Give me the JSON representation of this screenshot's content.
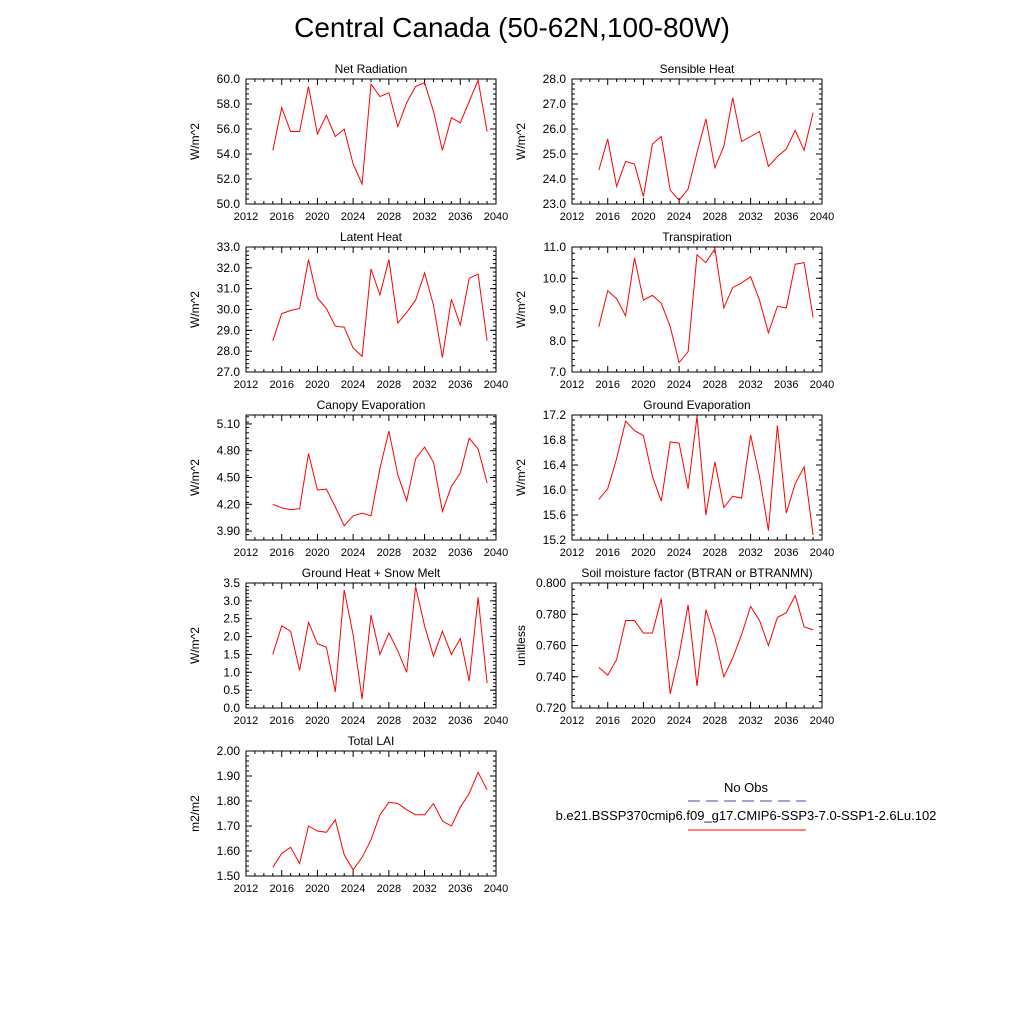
{
  "page": {
    "title": "Central Canada (50-62N,100-80W)"
  },
  "legend": {
    "obs_label": "No Obs",
    "obs_color": "#4444aa",
    "model_label": "b.e21.BSSP370cmip6.f09_g17.CMIP6-SSP3-7.0-SSP1-2.6Lu.102",
    "model_color": "#ff0000"
  },
  "chart_data": [
    {
      "type": "line",
      "title": "Net Radiation",
      "ylabel": "W/m^2",
      "xlabel": "",
      "xlim": [
        2012,
        2040
      ],
      "ylim": [
        50,
        60
      ],
      "xticks": [
        "2012",
        "2016",
        "2020",
        "2024",
        "2028",
        "2032",
        "2036",
        "2040"
      ],
      "yticks": [
        "50.0",
        "52.0",
        "54.0",
        "56.0",
        "58.0",
        "60.0"
      ],
      "series": [
        {
          "color": "#ff0000",
          "x": [
            2015,
            2016,
            2017,
            2018,
            2019,
            2020,
            2021,
            2022,
            2023,
            2024,
            2025,
            2026,
            2027,
            2028,
            2029,
            2030,
            2031,
            2032,
            2033,
            2034,
            2035,
            2036,
            2037,
            2038,
            2039
          ],
          "y": [
            54.3,
            57.7,
            55.8,
            55.8,
            59.4,
            55.6,
            57.1,
            55.4,
            56.0,
            53.2,
            51.6,
            59.6,
            58.6,
            58.9,
            56.2,
            58.1,
            59.4,
            59.7,
            57.4,
            54.3,
            56.9,
            56.5,
            58.2,
            59.9,
            55.8
          ]
        }
      ]
    },
    {
      "type": "line",
      "title": "Sensible Heat",
      "ylabel": "W/m^2",
      "xlabel": "",
      "xlim": [
        2012,
        2040
      ],
      "ylim": [
        23,
        28
      ],
      "xticks": [
        "2012",
        "2016",
        "2020",
        "2024",
        "2028",
        "2032",
        "2036",
        "2040"
      ],
      "yticks": [
        "23.0",
        "24.0",
        "25.0",
        "26.0",
        "27.0",
        "28.0"
      ],
      "series": [
        {
          "color": "#ff0000",
          "x": [
            2015,
            2016,
            2017,
            2018,
            2019,
            2020,
            2021,
            2022,
            2023,
            2024,
            2025,
            2026,
            2027,
            2028,
            2029,
            2030,
            2031,
            2032,
            2033,
            2034,
            2035,
            2036,
            2037,
            2038,
            2039
          ],
          "y": [
            24.35,
            25.6,
            23.7,
            24.7,
            24.6,
            23.3,
            25.4,
            25.7,
            23.55,
            23.15,
            23.6,
            25.05,
            26.4,
            24.45,
            25.3,
            27.25,
            25.5,
            25.7,
            25.9,
            24.5,
            24.9,
            25.2,
            25.95,
            25.15,
            26.65
          ]
        }
      ]
    },
    {
      "type": "line",
      "title": "Latent Heat",
      "ylabel": "W/m^2",
      "xlabel": "",
      "xlim": [
        2012,
        2040
      ],
      "ylim": [
        27,
        33
      ],
      "xticks": [
        "2012",
        "2016",
        "2020",
        "2024",
        "2028",
        "2032",
        "2036",
        "2040"
      ],
      "yticks": [
        "27.0",
        "28.0",
        "29.0",
        "30.0",
        "31.0",
        "32.0",
        "33.0"
      ],
      "series": [
        {
          "color": "#ff0000",
          "x": [
            2015,
            2016,
            2017,
            2018,
            2019,
            2020,
            2021,
            2022,
            2023,
            2024,
            2025,
            2026,
            2027,
            2028,
            2029,
            2030,
            2031,
            2032,
            2033,
            2034,
            2035,
            2036,
            2037,
            2038,
            2039
          ],
          "y": [
            28.5,
            29.8,
            29.95,
            30.05,
            32.4,
            30.55,
            30.05,
            29.2,
            29.15,
            28.15,
            27.75,
            31.95,
            30.7,
            32.4,
            29.35,
            29.85,
            30.45,
            31.75,
            30.2,
            27.7,
            30.5,
            29.25,
            31.5,
            31.7,
            28.5
          ]
        }
      ]
    },
    {
      "type": "line",
      "title": "Transpiration",
      "ylabel": "W/m^2",
      "xlabel": "",
      "xlim": [
        2012,
        2040
      ],
      "ylim": [
        7,
        11
      ],
      "xticks": [
        "2012",
        "2016",
        "2020",
        "2024",
        "2028",
        "2032",
        "2036",
        "2040"
      ],
      "yticks": [
        "7.0",
        "8.0",
        "9.0",
        "10.0",
        "11.0"
      ],
      "series": [
        {
          "color": "#ff0000",
          "x": [
            2015,
            2016,
            2017,
            2018,
            2019,
            2020,
            2021,
            2022,
            2023,
            2024,
            2025,
            2026,
            2027,
            2028,
            2029,
            2030,
            2031,
            2032,
            2033,
            2034,
            2035,
            2036,
            2037,
            2038,
            2039
          ],
          "y": [
            8.45,
            9.6,
            9.35,
            8.8,
            10.65,
            9.3,
            9.45,
            9.2,
            8.45,
            7.3,
            7.65,
            10.75,
            10.5,
            10.95,
            9.05,
            9.7,
            9.85,
            10.05,
            9.3,
            8.25,
            9.1,
            9.05,
            10.45,
            10.5,
            8.75
          ]
        }
      ]
    },
    {
      "type": "line",
      "title": "Canopy Evaporation",
      "ylabel": "W/m^2",
      "xlabel": "",
      "xlim": [
        2012,
        2040
      ],
      "ylim": [
        3.8,
        5.2
      ],
      "xticks": [
        "2012",
        "2016",
        "2020",
        "2024",
        "2028",
        "2032",
        "2036",
        "2040"
      ],
      "yticks": [
        "3.90",
        "4.20",
        "4.50",
        "4.80",
        "5.10"
      ],
      "series": [
        {
          "color": "#ff0000",
          "x": [
            2015,
            2016,
            2017,
            2018,
            2019,
            2020,
            2021,
            2022,
            2023,
            2024,
            2025,
            2026,
            2027,
            2028,
            2029,
            2030,
            2031,
            2032,
            2033,
            2034,
            2035,
            2036,
            2037,
            2038,
            2039
          ],
          "y": [
            4.2,
            4.16,
            4.14,
            4.15,
            4.77,
            4.36,
            4.37,
            4.17,
            3.96,
            4.07,
            4.1,
            4.07,
            4.6,
            5.02,
            4.53,
            4.24,
            4.71,
            4.84,
            4.67,
            4.12,
            4.4,
            4.55,
            4.94,
            4.82,
            4.44
          ]
        }
      ]
    },
    {
      "type": "line",
      "title": "Ground Evaporation",
      "ylabel": "W/m^2",
      "xlabel": "",
      "xlim": [
        2012,
        2040
      ],
      "ylim": [
        15.2,
        17.2
      ],
      "xticks": [
        "2012",
        "2016",
        "2020",
        "2024",
        "2028",
        "2032",
        "2036",
        "2040"
      ],
      "yticks": [
        "15.2",
        "15.6",
        "16.0",
        "16.4",
        "16.8",
        "17.2"
      ],
      "series": [
        {
          "color": "#ff0000",
          "x": [
            2015,
            2016,
            2017,
            2018,
            2019,
            2020,
            2021,
            2022,
            2023,
            2024,
            2025,
            2026,
            2027,
            2028,
            2029,
            2030,
            2031,
            2032,
            2033,
            2034,
            2035,
            2036,
            2037,
            2038,
            2039
          ],
          "y": [
            15.85,
            16.02,
            16.5,
            17.1,
            16.95,
            16.87,
            16.22,
            15.82,
            16.77,
            16.75,
            16.02,
            17.18,
            15.6,
            16.45,
            15.72,
            15.9,
            15.87,
            16.88,
            16.22,
            15.35,
            17.03,
            15.63,
            16.1,
            16.37,
            15.28
          ]
        }
      ]
    },
    {
      "type": "line",
      "title": "Ground Heat + Snow Melt",
      "ylabel": "W/m^2",
      "xlabel": "",
      "xlim": [
        2012,
        2040
      ],
      "ylim": [
        0,
        3.5
      ],
      "xticks": [
        "2012",
        "2016",
        "2020",
        "2024",
        "2028",
        "2032",
        "2036",
        "2040"
      ],
      "yticks": [
        "0.0",
        "0.5",
        "1.0",
        "1.5",
        "2.0",
        "2.5",
        "3.0",
        "3.5"
      ],
      "series": [
        {
          "color": "#ff0000",
          "x": [
            2015,
            2016,
            2017,
            2018,
            2019,
            2020,
            2021,
            2022,
            2023,
            2024,
            2025,
            2026,
            2027,
            2028,
            2029,
            2030,
            2031,
            2032,
            2033,
            2034,
            2035,
            2036,
            2037,
            2038,
            2039
          ],
          "y": [
            1.5,
            2.3,
            2.15,
            1.05,
            2.4,
            1.8,
            1.7,
            0.45,
            3.3,
            2.05,
            0.25,
            2.6,
            1.5,
            2.1,
            1.6,
            1.0,
            3.4,
            2.3,
            1.45,
            2.15,
            1.5,
            1.95,
            0.75,
            3.1,
            0.7
          ]
        }
      ]
    },
    {
      "type": "line",
      "title": "Soil moisture factor (BTRAN or BTRANMN)",
      "ylabel": "unitless",
      "xlabel": "",
      "xlim": [
        2012,
        2040
      ],
      "ylim": [
        0.72,
        0.8
      ],
      "xticks": [
        "2012",
        "2016",
        "2020",
        "2024",
        "2028",
        "2032",
        "2036",
        "2040"
      ],
      "yticks": [
        "0.720",
        "0.740",
        "0.760",
        "0.780",
        "0.800"
      ],
      "series": [
        {
          "color": "#ff0000",
          "x": [
            2015,
            2016,
            2017,
            2018,
            2019,
            2020,
            2021,
            2022,
            2023,
            2024,
            2025,
            2026,
            2027,
            2028,
            2029,
            2030,
            2031,
            2032,
            2033,
            2034,
            2035,
            2036,
            2037,
            2038,
            2039
          ],
          "y": [
            0.746,
            0.741,
            0.751,
            0.776,
            0.776,
            0.768,
            0.768,
            0.79,
            0.729,
            0.754,
            0.786,
            0.734,
            0.783,
            0.765,
            0.74,
            0.752,
            0.767,
            0.785,
            0.776,
            0.76,
            0.778,
            0.781,
            0.792,
            0.772,
            0.77
          ]
        }
      ]
    },
    {
      "type": "line",
      "title": "Total LAI",
      "ylabel": "m2/m2",
      "xlabel": "",
      "xlim": [
        2012,
        2040
      ],
      "ylim": [
        1.5,
        2.0
      ],
      "xticks": [
        "2012",
        "2016",
        "2020",
        "2024",
        "2028",
        "2032",
        "2036",
        "2040"
      ],
      "yticks": [
        "1.50",
        "1.60",
        "1.70",
        "1.80",
        "1.90",
        "2.00"
      ],
      "series": [
        {
          "color": "#ff0000",
          "x": [
            2015,
            2016,
            2017,
            2018,
            2019,
            2020,
            2021,
            2022,
            2023,
            2024,
            2025,
            2026,
            2027,
            2028,
            2029,
            2030,
            2031,
            2032,
            2033,
            2034,
            2035,
            2036,
            2037,
            2038,
            2039
          ],
          "y": [
            1.535,
            1.59,
            1.615,
            1.55,
            1.7,
            1.68,
            1.675,
            1.725,
            1.585,
            1.525,
            1.575,
            1.645,
            1.745,
            1.795,
            1.79,
            1.765,
            1.745,
            1.745,
            1.79,
            1.72,
            1.7,
            1.775,
            1.83,
            1.915,
            1.845
          ]
        }
      ]
    }
  ]
}
